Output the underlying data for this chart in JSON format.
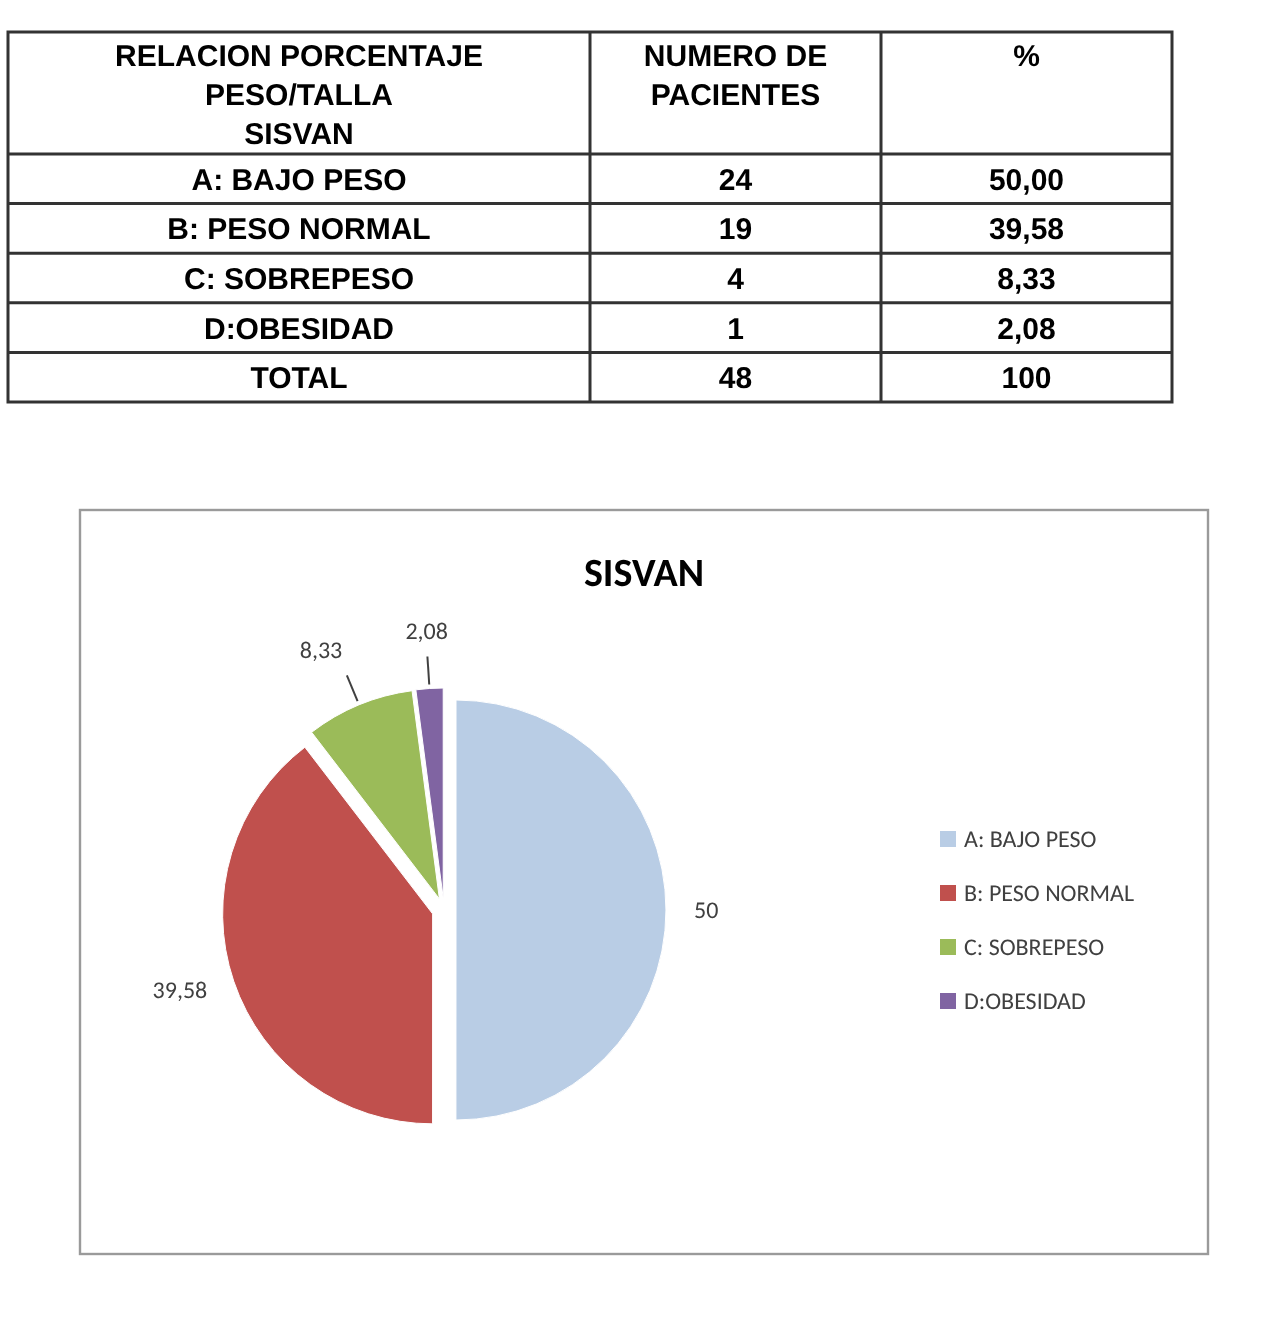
{
  "chart_data": [
    {
      "type": "other",
      "xlabel": "RELACION PORCENTAJE\nPESO/TALLA\nSISVAN",
      "categories": [
        "A: BAJO PESO",
        "B: PESO NORMAL",
        "C: SOBREPESO",
        "D:OBESIDAD",
        "TOTAL"
      ],
      "series": [
        {
          "name": "NUMERO DE PACIENTES",
          "values": [
            24,
            19,
            4,
            1,
            48
          ]
        },
        {
          "name": "%",
          "values": [
            50,
            39.58,
            8.33,
            2.08,
            100
          ],
          "value_labels": [
            "50,00",
            "39,58",
            "8,33",
            "2,08",
            "100"
          ]
        }
      ],
      "data_labels": true
    },
    {
      "type": "pie",
      "title": "SISVAN",
      "categories": [
        "A: BAJO PESO",
        "B: PESO NORMAL",
        "C: SOBREPESO",
        "D:OBESIDAD"
      ],
      "values": [
        50,
        39.58,
        8.33,
        2.08
      ],
      "colors": [
        "#b9cde5",
        "#c0504d",
        "#9bbb59",
        "#8064a2"
      ],
      "value_labels": [
        "50",
        "39,58",
        "8,33",
        "2,08"
      ],
      "legend": "right"
    }
  ]
}
